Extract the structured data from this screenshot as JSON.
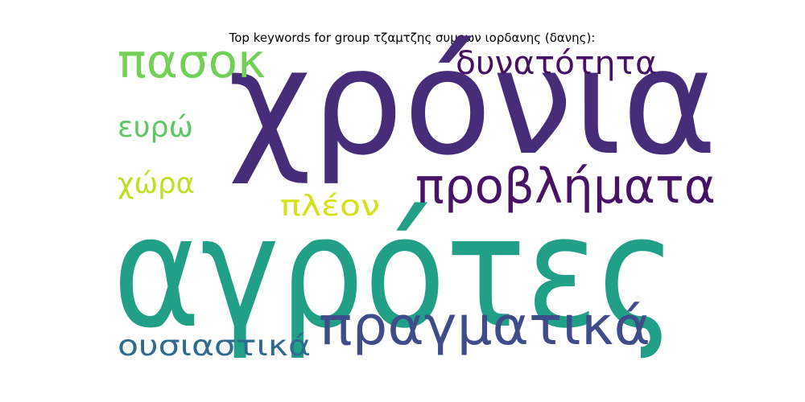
{
  "chart_data": {
    "type": "wordcloud",
    "title": "Top keywords for group τζαμτζης συμεων ιορδανης (δανης):",
    "words": [
      {
        "text": "χρόνια",
        "color": "#472c7a"
      },
      {
        "text": "αγρότες",
        "color": "#21a087"
      },
      {
        "text": "προβλήματα",
        "color": "#461367"
      },
      {
        "text": "δυνατότητα",
        "color": "#471164"
      },
      {
        "text": "πασοκ",
        "color": "#73d056"
      },
      {
        "text": "πραγματικά",
        "color": "#3e4c8a"
      },
      {
        "text": "ευρώ",
        "color": "#5dc863"
      },
      {
        "text": "χώρα",
        "color": "#c2df23"
      },
      {
        "text": "πλέον",
        "color": "#d5e21a"
      },
      {
        "text": "ουσιαστικά",
        "color": "#2f6b8e"
      }
    ]
  }
}
